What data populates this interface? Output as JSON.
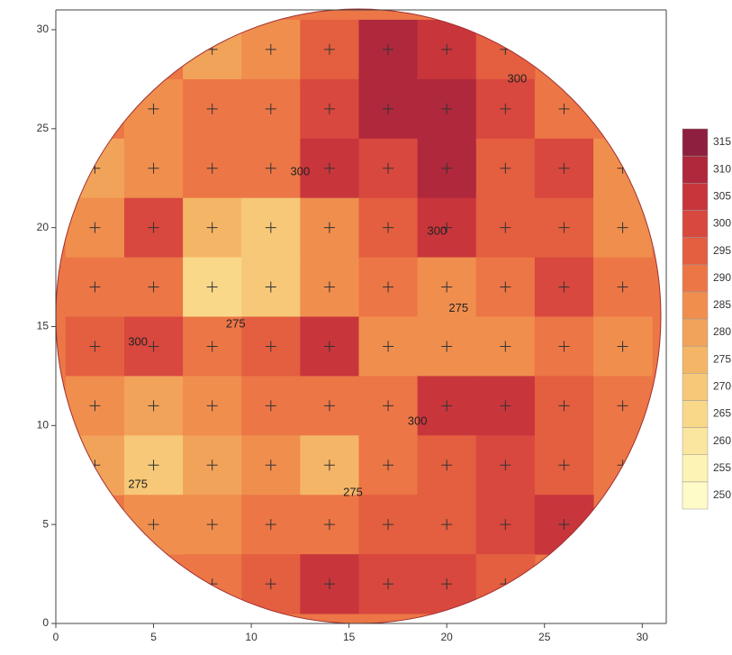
{
  "chart_data": {
    "type": "contour",
    "xlim": [
      0,
      31
    ],
    "ylim": [
      0,
      31
    ],
    "xticks": [
      0,
      5,
      10,
      15,
      20,
      25,
      30
    ],
    "yticks": [
      0,
      5,
      10,
      15,
      20,
      25,
      30
    ],
    "x": [
      2,
      5,
      8,
      11,
      14,
      17,
      20,
      23,
      26,
      29
    ],
    "y": [
      29,
      26,
      23,
      20,
      17,
      14,
      11,
      8,
      5,
      2
    ],
    "z": [
      [
        null,
        null,
        280,
        285,
        295,
        310,
        305,
        295,
        null,
        null
      ],
      [
        null,
        285,
        290,
        290,
        300,
        310,
        310,
        300,
        290,
        null
      ],
      [
        280,
        285,
        290,
        290,
        305,
        300,
        310,
        295,
        300,
        285
      ],
      [
        285,
        300,
        275,
        270,
        285,
        295,
        305,
        295,
        295,
        285
      ],
      [
        290,
        290,
        265,
        270,
        285,
        290,
        285,
        290,
        300,
        290
      ],
      [
        295,
        300,
        290,
        295,
        305,
        285,
        285,
        285,
        290,
        285
      ],
      [
        285,
        280,
        285,
        290,
        290,
        290,
        305,
        305,
        295,
        290
      ],
      [
        280,
        270,
        280,
        285,
        275,
        290,
        295,
        300,
        295,
        290
      ],
      [
        null,
        285,
        285,
        290,
        290,
        295,
        295,
        300,
        305,
        null
      ],
      [
        null,
        null,
        290,
        295,
        305,
        300,
        300,
        295,
        null,
        null
      ]
    ],
    "levels": [
      250,
      255,
      260,
      265,
      270,
      275,
      280,
      285,
      290,
      295,
      300,
      305,
      310,
      315
    ],
    "colors": [
      "#fffbc8",
      "#fdf3b4",
      "#fbe6a0",
      "#f9d88a",
      "#f6c878",
      "#f4b666",
      "#f2a35a",
      "#f08e4e",
      "#ec7646",
      "#e45e40",
      "#d8483e",
      "#c8363c",
      "#b0283c",
      "#8e1f3e"
    ],
    "contour_labels": [
      {
        "x": 12.5,
        "y": 22.8,
        "value": 300
      },
      {
        "x": 23.6,
        "y": 27.5,
        "value": 300
      },
      {
        "x": 19.5,
        "y": 19.8,
        "value": 300
      },
      {
        "x": 4.2,
        "y": 14.2,
        "value": 300
      },
      {
        "x": 18.5,
        "y": 10.2,
        "value": 300
      },
      {
        "x": 9.2,
        "y": 15.1,
        "value": 275
      },
      {
        "x": 20.6,
        "y": 15.9,
        "value": 275
      },
      {
        "x": 4.2,
        "y": 7.0,
        "value": 275
      },
      {
        "x": 15.2,
        "y": 6.6,
        "value": 275
      }
    ]
  }
}
